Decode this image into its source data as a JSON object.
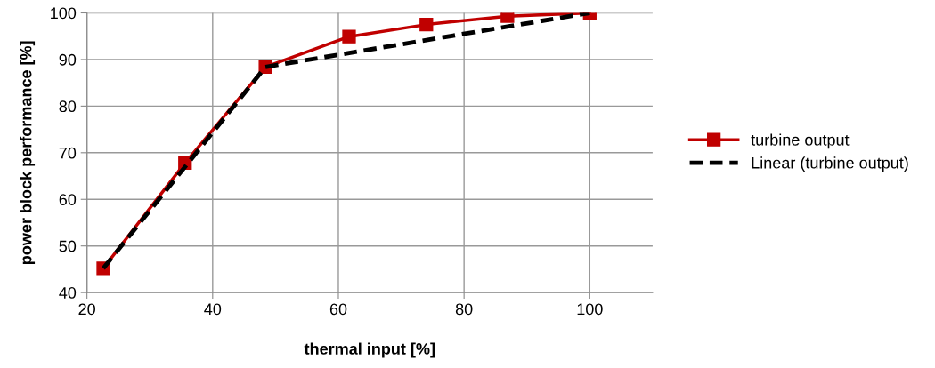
{
  "chart_data": {
    "type": "line",
    "xlabel": "thermal input [%]",
    "ylabel": "power block performance [%]",
    "xlim": [
      20,
      110
    ],
    "xticks": [
      20,
      40,
      60,
      80,
      100
    ],
    "ylim": [
      40,
      100
    ],
    "yticks": [
      40,
      50,
      60,
      70,
      80,
      90,
      100
    ],
    "grid": true,
    "legend": "right",
    "series": [
      {
        "name": "turbine output",
        "color": "#c00000",
        "marker": "square",
        "line_style": "solid",
        "x": [
          22.6,
          35.6,
          48.4,
          61.7,
          74.0,
          86.9,
          100
        ],
        "values": [
          45.2,
          67.8,
          88.4,
          94.9,
          97.5,
          99.3,
          100
        ]
      },
      {
        "name": "Linear (turbine output)",
        "color": "#000000",
        "marker": "none",
        "line_style": "dashed",
        "x": [
          22.6,
          48.4,
          100
        ],
        "values": [
          45.2,
          88.4,
          100
        ]
      }
    ]
  }
}
